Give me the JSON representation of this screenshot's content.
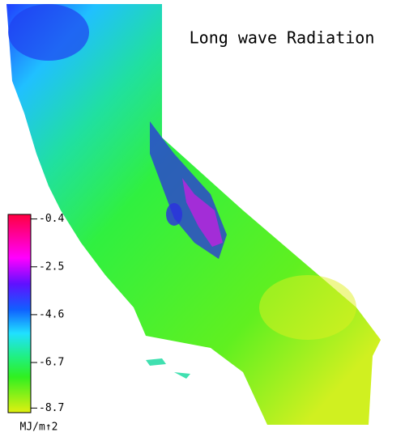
{
  "title": "Long wave Radiation",
  "colorbar": {
    "lim": [
      -8.9,
      -0.2
    ],
    "ticks": [
      -0.4,
      -2.5,
      -4.6,
      -6.7,
      -8.7
    ],
    "unit": "MJ/m↑2"
  }
}
